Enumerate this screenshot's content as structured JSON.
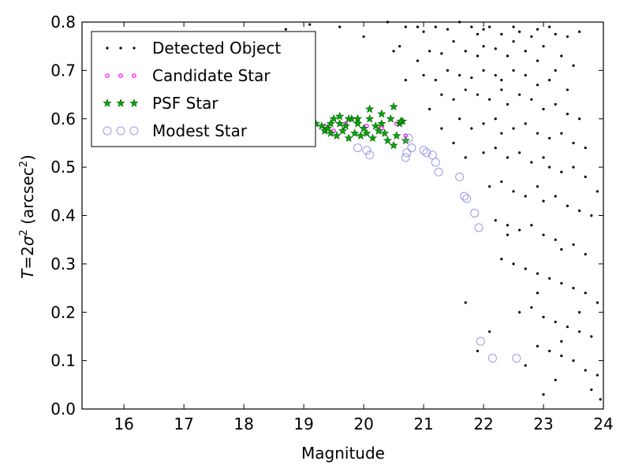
{
  "chart_data": {
    "type": "scatter",
    "title": "",
    "xlabel": "Magnitude",
    "ylabel": {
      "prefix": "T",
      "eq": "=2",
      "sigma": "σ",
      "sup": "2",
      "paren_open": " (arcsec",
      "paren_close": ")"
    },
    "xlim": [
      15.3,
      24.0
    ],
    "ylim": [
      0.0,
      0.8
    ],
    "grid": false,
    "legend_placement": "top-left",
    "xticks": [
      16,
      17,
      18,
      19,
      20,
      21,
      22,
      23,
      24
    ],
    "xtick_labels": [
      "16",
      "17",
      "18",
      "19",
      "20",
      "21",
      "22",
      "23",
      "24"
    ],
    "yticks": [
      0.0,
      0.1,
      0.2,
      0.3,
      0.4,
      0.5,
      0.6,
      0.7,
      0.8
    ],
    "ytick_labels": [
      "0.0",
      "0.1",
      "0.2",
      "0.3",
      "0.4",
      "0.5",
      "0.6",
      "0.7",
      "0.8"
    ],
    "series": [
      {
        "name": "Detected Object",
        "marker": "dot",
        "color": "#000000",
        "x": [
          18.7,
          19.1,
          19.6,
          20.0,
          20.4,
          20.7,
          20.9,
          21.0,
          21.2,
          21.4,
          21.6,
          21.8,
          21.9,
          22.0,
          22.1,
          22.3,
          22.5,
          22.6,
          22.8,
          22.9,
          23.1,
          23.2,
          23.4,
          23.6,
          20.6,
          20.9,
          21.1,
          21.3,
          21.5,
          21.7,
          21.9,
          22.0,
          22.2,
          22.4,
          22.5,
          22.7,
          22.9,
          23.0,
          23.3,
          23.5,
          21.0,
          21.2,
          21.4,
          21.6,
          21.8,
          22.0,
          22.2,
          22.3,
          22.5,
          22.7,
          22.9,
          23.1,
          23.2,
          23.4,
          21.3,
          21.5,
          21.7,
          21.9,
          22.1,
          22.3,
          22.4,
          22.6,
          22.8,
          23.0,
          23.2,
          23.4,
          23.6,
          21.6,
          21.8,
          22.0,
          22.2,
          22.3,
          22.5,
          22.7,
          22.9,
          23.1,
          23.3,
          23.5,
          23.7,
          22.0,
          22.2,
          22.4,
          22.6,
          22.8,
          23.0,
          23.1,
          23.3,
          23.5,
          23.7,
          23.9,
          22.1,
          22.3,
          22.5,
          22.7,
          22.9,
          23.0,
          23.2,
          23.4,
          23.6,
          23.8,
          22.2,
          22.4,
          22.6,
          22.8,
          23.0,
          23.2,
          23.3,
          23.5,
          23.7,
          22.3,
          22.5,
          22.7,
          22.9,
          23.1,
          23.3,
          23.5,
          23.7,
          23.9,
          22.6,
          22.8,
          23.0,
          23.2,
          23.4,
          23.6,
          23.8,
          22.9,
          23.1,
          23.3,
          23.5,
          23.7,
          23.9,
          21.7,
          21.9,
          22.1,
          23.2,
          23.0,
          22.7,
          23.8,
          23.95,
          20.5,
          20.7,
          21.1,
          21.3,
          21.5,
          21.7,
          22.4,
          22.9,
          23.6,
          23.3
        ],
        "y": [
          0.785,
          0.795,
          0.79,
          0.77,
          0.8,
          0.79,
          0.79,
          0.78,
          0.79,
          0.785,
          0.8,
          0.79,
          0.775,
          0.785,
          0.79,
          0.775,
          0.79,
          0.78,
          0.77,
          0.785,
          0.79,
          0.775,
          0.77,
          0.78,
          0.75,
          0.72,
          0.74,
          0.735,
          0.76,
          0.74,
          0.73,
          0.75,
          0.745,
          0.73,
          0.76,
          0.74,
          0.72,
          0.75,
          0.73,
          0.71,
          0.69,
          0.68,
          0.7,
          0.69,
          0.685,
          0.7,
          0.69,
          0.68,
          0.7,
          0.69,
          0.67,
          0.68,
          0.7,
          0.66,
          0.65,
          0.64,
          0.66,
          0.65,
          0.64,
          0.66,
          0.63,
          0.65,
          0.64,
          0.62,
          0.63,
          0.61,
          0.6,
          0.6,
          0.58,
          0.59,
          0.6,
          0.57,
          0.58,
          0.59,
          0.57,
          0.56,
          0.57,
          0.55,
          0.54,
          0.53,
          0.54,
          0.52,
          0.53,
          0.51,
          0.52,
          0.5,
          0.49,
          0.5,
          0.48,
          0.45,
          0.46,
          0.47,
          0.45,
          0.44,
          0.46,
          0.43,
          0.44,
          0.42,
          0.41,
          0.4,
          0.39,
          0.38,
          0.37,
          0.38,
          0.36,
          0.35,
          0.33,
          0.34,
          0.32,
          0.31,
          0.3,
          0.29,
          0.28,
          0.27,
          0.26,
          0.25,
          0.24,
          0.22,
          0.2,
          0.21,
          0.19,
          0.18,
          0.17,
          0.16,
          0.15,
          0.13,
          0.12,
          0.11,
          0.1,
          0.08,
          0.07,
          0.22,
          0.12,
          0.16,
          0.06,
          0.03,
          0.09,
          0.04,
          0.02,
          0.74,
          0.68,
          0.62,
          0.58,
          0.55,
          0.52,
          0.36,
          0.24,
          0.2,
          0.14
        ]
      },
      {
        "name": "Candidate Star",
        "marker": "circle",
        "color": "#ff00ff",
        "x": [
          19.15,
          19.35,
          19.5,
          19.7,
          19.9,
          20.05,
          20.3,
          20.55,
          20.7
        ],
        "y": [
          0.556,
          0.585,
          0.575,
          0.59,
          0.6,
          0.585,
          0.58,
          0.59,
          0.565
        ]
      },
      {
        "name": "PSF Star",
        "marker": "star",
        "color": "#00aa00",
        "x": [
          19.2,
          19.3,
          19.35,
          19.4,
          19.45,
          19.5,
          19.55,
          19.6,
          19.65,
          19.7,
          19.75,
          19.8,
          19.85,
          19.9,
          19.95,
          20.0,
          20.05,
          20.1,
          20.15,
          20.2,
          20.25,
          20.3,
          20.35,
          20.4,
          20.45,
          20.5,
          20.55,
          20.6,
          20.65,
          20.7,
          19.45,
          19.6,
          19.75,
          19.9,
          20.1,
          20.3,
          20.5,
          20.62
        ],
        "y": [
          0.59,
          0.585,
          0.575,
          0.58,
          0.57,
          0.6,
          0.565,
          0.59,
          0.575,
          0.585,
          0.56,
          0.6,
          0.57,
          0.59,
          0.565,
          0.58,
          0.57,
          0.6,
          0.56,
          0.585,
          0.575,
          0.59,
          0.57,
          0.555,
          0.6,
          0.545,
          0.565,
          0.59,
          0.595,
          0.555,
          0.59,
          0.605,
          0.6,
          0.6,
          0.62,
          0.61,
          0.625,
          0.595
        ]
      },
      {
        "name": "Modest Star",
        "marker": "open-circle",
        "color": "#9999ee",
        "x": [
          19.9,
          20.05,
          20.1,
          20.7,
          20.72,
          20.8,
          21.0,
          21.05,
          21.15,
          21.2,
          21.25,
          21.6,
          21.68,
          21.72,
          21.85,
          21.92,
          21.95,
          22.15,
          22.55,
          20.75
        ],
        "y": [
          0.54,
          0.535,
          0.525,
          0.52,
          0.53,
          0.54,
          0.535,
          0.53,
          0.525,
          0.51,
          0.49,
          0.48,
          0.44,
          0.435,
          0.405,
          0.375,
          0.14,
          0.105,
          0.105,
          0.56
        ]
      }
    ],
    "legend": [
      {
        "label": "Detected Object"
      },
      {
        "label": "Candidate Star"
      },
      {
        "label": "PSF Star"
      },
      {
        "label": "Modest Star"
      }
    ]
  }
}
